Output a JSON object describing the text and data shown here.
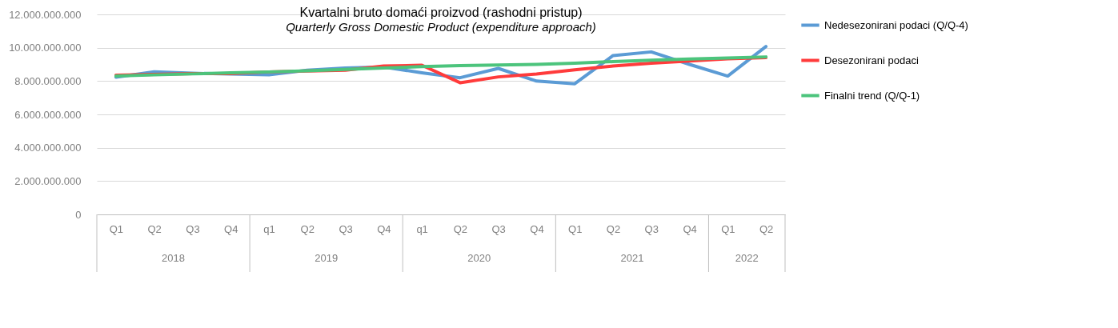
{
  "chart_data": {
    "type": "line",
    "title": "Kvartalni bruto domaći proizvod (rashodni pristup)",
    "subtitle": "Quarterly Gross Domestic Product (expenditure approach)",
    "categories": [
      "Q1",
      "Q2",
      "Q3",
      "Q4",
      "q1",
      "Q2",
      "Q3",
      "Q4",
      "q1",
      "Q2",
      "Q3",
      "Q4",
      "Q1",
      "Q2",
      "Q3",
      "Q4",
      "Q1",
      "Q2"
    ],
    "annotations": [
      "2018",
      "2019",
      "2020",
      "2021",
      "2022"
    ],
    "series": [
      {
        "name": "Nedesezonirani podaci (Q/Q-4)",
        "color": "#5b9bd5",
        "values": [
          8230000000,
          8560000000,
          8470000000,
          8420000000,
          8370000000,
          8650000000,
          8790000000,
          8840000000,
          8500000000,
          8200000000,
          8760000000,
          8000000000,
          7840000000,
          9530000000,
          9750000000,
          9000000000,
          8300000000,
          10070000000
        ]
      },
      {
        "name": "Desezonirani podaci",
        "color": "#ff3b3b",
        "values": [
          8350000000,
          8400000000,
          8450000000,
          8450000000,
          8550000000,
          8600000000,
          8650000000,
          8900000000,
          8950000000,
          7900000000,
          8250000000,
          8420000000,
          8680000000,
          8900000000,
          9070000000,
          9200000000,
          9330000000,
          9410000000
        ]
      },
      {
        "name": "Finalni trend (Q/Q-1)",
        "color": "#4cc47c",
        "values": [
          8300000000,
          8370000000,
          8430000000,
          8500000000,
          8550000000,
          8620000000,
          8700000000,
          8780000000,
          8870000000,
          8930000000,
          8960000000,
          9000000000,
          9070000000,
          9170000000,
          9250000000,
          9320000000,
          9380000000,
          9450000000
        ]
      }
    ],
    "ylim": [
      0,
      12000000000
    ],
    "yticks": [
      {
        "value": 0,
        "label": "0"
      },
      {
        "value": 2000000000,
        "label": "2.000.000.000"
      },
      {
        "value": 4000000000,
        "label": "4.000.000.000"
      },
      {
        "value": 6000000000,
        "label": "6.000.000.000"
      },
      {
        "value": 8000000000,
        "label": "8.000.000.000"
      },
      {
        "value": 10000000000,
        "label": "10.000.000.000"
      },
      {
        "value": 12000000000,
        "label": "12.000.000.000"
      }
    ],
    "grid": "y",
    "legend": "right",
    "marker": "none",
    "line_style": "solid"
  }
}
